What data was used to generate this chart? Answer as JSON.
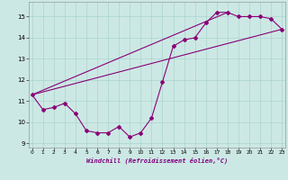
{
  "xlabel": "Windchill (Refroidissement éolien,°C)",
  "bg_color": "#cce8e4",
  "line_color": "#880077",
  "grid_color": "#aad4ce",
  "hours": [
    0,
    1,
    2,
    3,
    4,
    5,
    6,
    7,
    8,
    9,
    10,
    11,
    12,
    13,
    14,
    15,
    16,
    17,
    18,
    19,
    20,
    21,
    22,
    23
  ],
  "curve_temp": [
    11.3,
    10.6,
    10.7,
    10.9,
    10.4,
    9.6,
    9.5,
    9.5,
    9.8,
    9.3,
    9.5,
    10.2,
    11.9,
    13.6,
    13.9,
    14.0,
    14.7,
    15.2,
    15.2,
    15.0,
    15.0,
    15.0,
    14.9,
    14.4
  ],
  "line1_x": [
    0,
    18
  ],
  "line1_y": [
    11.3,
    15.2
  ],
  "line2_x": [
    0,
    23
  ],
  "line2_y": [
    11.3,
    14.4
  ],
  "ylim": [
    8.8,
    15.7
  ],
  "xlim": [
    -0.3,
    23.3
  ],
  "yticks": [
    9,
    10,
    11,
    12,
    13,
    14,
    15
  ],
  "xticks": [
    0,
    1,
    2,
    3,
    4,
    5,
    6,
    7,
    8,
    9,
    10,
    11,
    12,
    13,
    14,
    15,
    16,
    17,
    18,
    19,
    20,
    21,
    22,
    23
  ]
}
